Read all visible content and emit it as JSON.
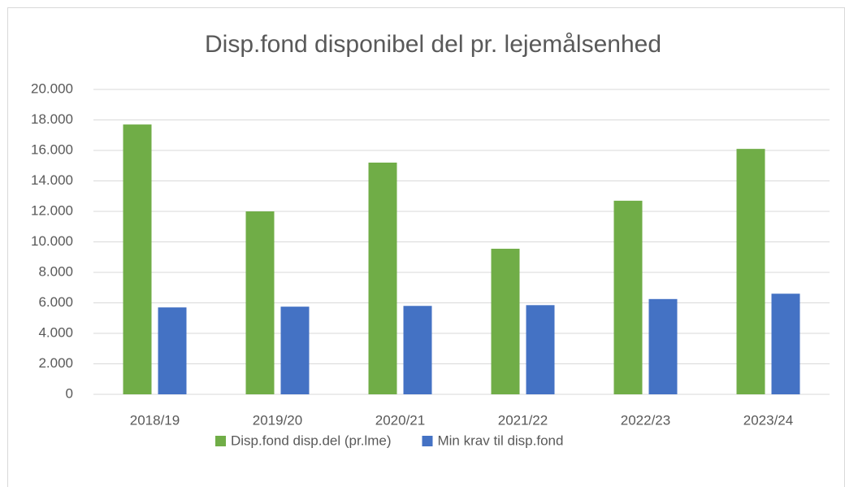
{
  "chart_data": {
    "type": "bar",
    "title": "Disp.fond disponibel del pr. lejemålsenhed",
    "categories": [
      "2018/19",
      "2019/20",
      "2020/21",
      "2021/22",
      "2022/23",
      "2023/24"
    ],
    "series": [
      {
        "name": "Disp.fond disp.del (pr.lme)",
        "color": "#70ad47",
        "values": [
          17700,
          12000,
          15200,
          9550,
          12700,
          16100
        ]
      },
      {
        "name": "Min krav til disp.fond",
        "color": "#4472c4",
        "values": [
          5700,
          5750,
          5800,
          5850,
          6250,
          6600
        ]
      }
    ],
    "ylim": [
      0,
      20000
    ],
    "yticks": [
      0,
      {
        "value": 2000,
        "label": "2.000"
      },
      {
        "value": 4000,
        "label": "4.000"
      },
      {
        "value": 6000,
        "label": "6.000"
      },
      {
        "value": 8000,
        "label": "8.000"
      },
      {
        "value": 10000,
        "label": "10.000"
      },
      {
        "value": 12000,
        "label": "12.000"
      },
      {
        "value": 14000,
        "label": "14.000"
      },
      {
        "value": 16000,
        "label": "16.000"
      },
      {
        "value": 18000,
        "label": "18.000"
      },
      {
        "value": 20000,
        "label": "20.000"
      }
    ],
    "grid": true,
    "legend": "bottom"
  }
}
